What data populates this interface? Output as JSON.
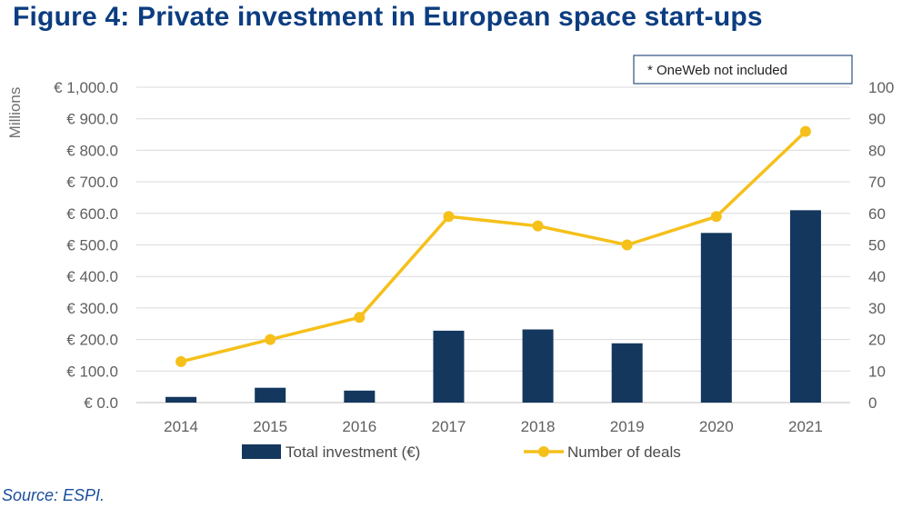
{
  "figure": {
    "title": "Figure 4: Private investment in European space start-ups",
    "source": "Source: ESPI."
  },
  "chart_data": {
    "type": "bar",
    "categories": [
      "2014",
      "2015",
      "2016",
      "2017",
      "2018",
      "2019",
      "2020",
      "2021"
    ],
    "series": [
      {
        "name": "Total investment (€)",
        "type": "bar",
        "axis": "left",
        "color": "#14375e",
        "values": [
          18,
          47,
          38,
          228,
          232,
          188,
          538,
          610
        ]
      },
      {
        "name": "Number of deals",
        "type": "line",
        "axis": "right",
        "color": "#f5c01a",
        "values": [
          13,
          20,
          27,
          59,
          56,
          50,
          59,
          86
        ]
      }
    ],
    "ylabel": "Millions",
    "ylim": [
      0,
      1000
    ],
    "y_ticks": [
      "€ 0.0",
      "€ 100.0",
      "€ 200.0",
      "€ 300.0",
      "€ 400.0",
      "€ 500.0",
      "€ 600.0",
      "€ 700.0",
      "€ 800.0",
      "€ 900.0",
      "€ 1,000.0"
    ],
    "y2lim": [
      0,
      100
    ],
    "y2_ticks": [
      "0",
      "10",
      "20",
      "30",
      "40",
      "50",
      "60",
      "70",
      "80",
      "90",
      "100"
    ],
    "grid": true,
    "legend_position": "bottom",
    "annotation": "* OneWeb not included"
  }
}
